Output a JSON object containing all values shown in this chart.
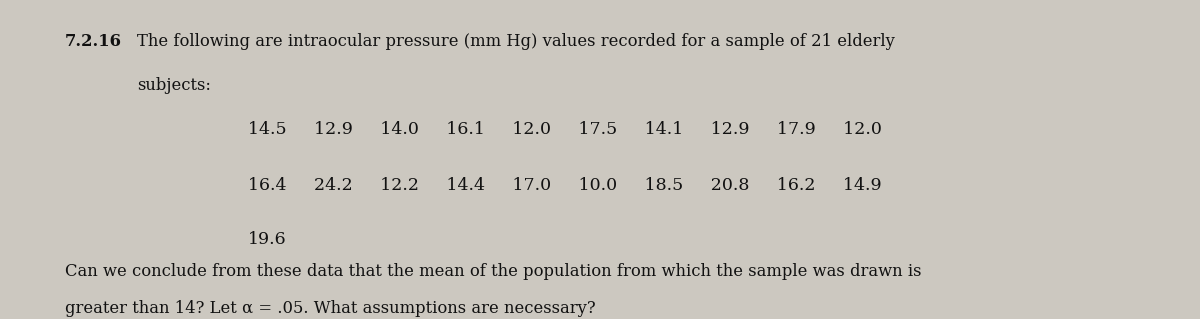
{
  "background_color": "#ccc8c0",
  "problem_number": "7.2.16",
  "line1": "The following are intraocular pressure (mm Hg) values recorded for a sample of 21 elderly",
  "line2": "subjects:",
  "data_row1": "14.5     12.9     14.0     16.1     12.0     17.5     14.1     12.9     17.9     12.0",
  "data_row2": "16.4     24.2     12.2     14.4     17.0     10.0     18.5     20.8     16.2     14.9",
  "data_row3": "19.6",
  "question_line1": "Can we conclude from these data that the mean of the population from which the sample was drawn is",
  "question_line2": "greater than 14? Let α = .05. What assumptions are necessary?",
  "font_size_body": 11.8,
  "font_size_number": 11.8,
  "font_size_data": 12.5,
  "font_size_question": 11.8,
  "text_color": "#111111"
}
